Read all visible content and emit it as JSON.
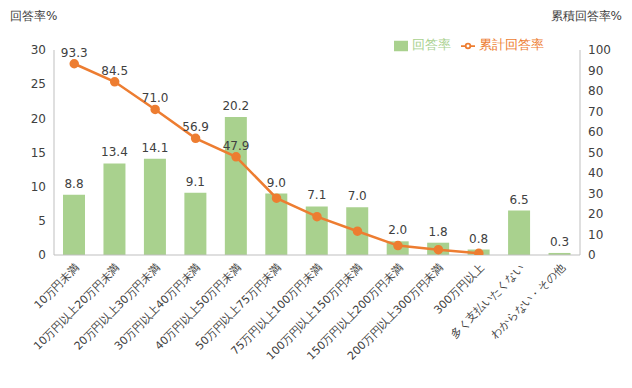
{
  "chart_data": {
    "type": "bar",
    "categories": [
      "10万円未満",
      "10万円以上20万円未満",
      "20万円以上30万円未満",
      "30万円以上40万円未満",
      "40万円以上50万円未満",
      "50万円以上75万円未満",
      "75万円以上100万円未満",
      "100万円以上150万円未満",
      "150万円以上200万円未満",
      "200万円以上300万円未満",
      "300万円以上",
      "多く支払いたくない",
      "わからない・その他"
    ],
    "series": [
      {
        "name": "回答率",
        "type": "bar",
        "color": "#a9d18e",
        "values": [
          8.8,
          13.4,
          14.1,
          9.1,
          20.2,
          9.0,
          7.1,
          7.0,
          2.0,
          1.8,
          0.8,
          6.5,
          0.3
        ],
        "value_labels": [
          "8.8",
          "13.4",
          "14.1",
          "9.1",
          "20.2",
          "9.0",
          "7.1",
          "7.0",
          "2.0",
          "1.8",
          "0.8",
          "6.5",
          "0.3"
        ]
      },
      {
        "name": "累計回答率",
        "type": "line",
        "axis": "y2",
        "color": "#ed7d31",
        "marker": "circle",
        "values": [
          93.3,
          84.5,
          71.0,
          56.9,
          47.9,
          27.7,
          18.7,
          11.6,
          4.6,
          2.6,
          0.8,
          null,
          null
        ],
        "value_labels": [
          "93.3",
          "84.5",
          "71.0",
          "56.9",
          "47.9",
          null,
          null,
          null,
          null,
          null,
          null,
          null,
          null
        ]
      }
    ],
    "y_label": "回答率%",
    "y2_label": "累積回答率%",
    "ylim": [
      0,
      30
    ],
    "yticks": [
      0,
      5,
      10,
      15,
      20,
      25,
      30
    ],
    "y2lim": [
      0,
      100
    ],
    "y2ticks": [
      0,
      10,
      20,
      30,
      40,
      50,
      60,
      70,
      80,
      90,
      100
    ],
    "legend": "top-right",
    "data_labels": true,
    "grid": false
  }
}
